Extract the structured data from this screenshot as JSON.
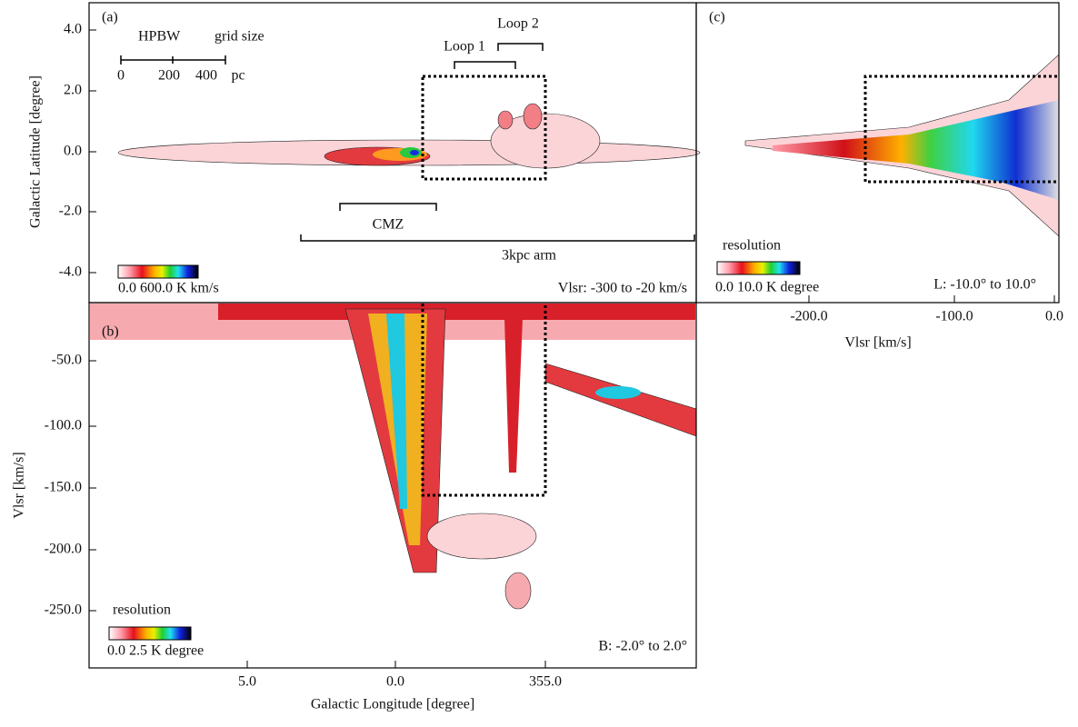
{
  "panels": [
    {
      "label": "(a)",
      "annotations": [
        "HPBW",
        "grid size",
        "Loop 1",
        "Loop 2",
        "CMZ",
        "3kpc arm",
        "Vlsr: -300 to -20 km/s"
      ],
      "scale": [
        "0",
        "200",
        "400",
        "pc"
      ],
      "colorbar": "0.0   600.0  K km/s",
      "y_axis": {
        "title": "Galactic Latitude [degree]",
        "ticks": [
          "4.0",
          "2.0",
          "0.0",
          "-2.0",
          "-4.0"
        ]
      }
    },
    {
      "label": "(b)",
      "colorbar_title": "resolution",
      "colorbar": "0.0  2.5  K degree",
      "annotation": "B: -2.0° to 2.0°",
      "y_axis": {
        "title": "Vlsr [km/s]",
        "ticks": [
          "-50.0",
          "-100.0",
          "-150.0",
          "-200.0",
          "-250.0"
        ]
      },
      "x_axis": {
        "title": "Galactic Longitude [degree]",
        "ticks": [
          "5.0",
          "0.0",
          "355.0"
        ]
      }
    },
    {
      "label": "(c)",
      "colorbar_title": "resolution",
      "colorbar": "0.0  10.0  K degree",
      "annotation": "L: -10.0° to 10.0°",
      "x_axis": {
        "title": "Vlsr [km/s]",
        "ticks": [
          "-200.0",
          "-100.0",
          "0.0"
        ]
      }
    }
  ]
}
